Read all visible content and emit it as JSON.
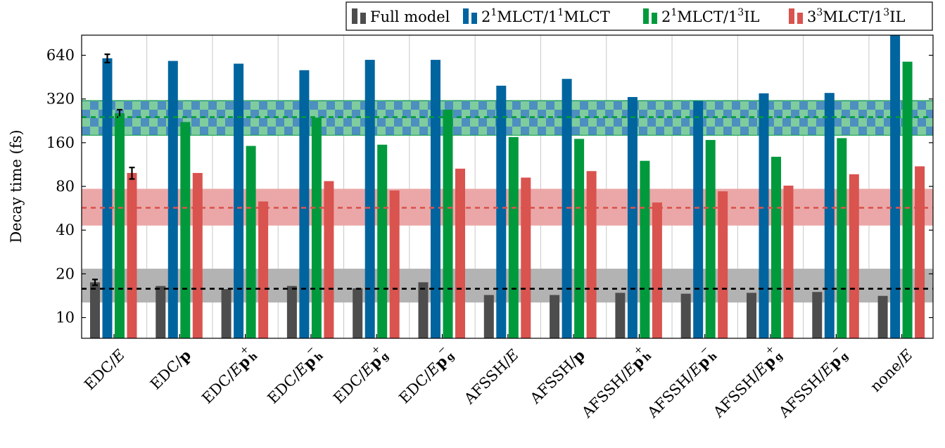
{
  "chart_data": {
    "type": "bar",
    "ylabel": "Decay time (fs)",
    "xlabel": "",
    "yscale": "log2",
    "ylim": [
      7.2,
      880
    ],
    "yticks": [
      10,
      20,
      40,
      80,
      160,
      320,
      640
    ],
    "ytick_labels": [
      "10",
      "20",
      "40",
      "80",
      "160",
      "320",
      "640"
    ],
    "grid": "vertical",
    "legend_position": "top-right",
    "categories": [
      {
        "pre": "EDC/",
        "italic": "E",
        "bold": "",
        "sup": "",
        "sub": ""
      },
      {
        "pre": "EDC/",
        "italic": "",
        "bold": "p",
        "sup": "",
        "sub": ""
      },
      {
        "pre": "EDC/",
        "italic": "E",
        "bold": "p",
        "sup": "+",
        "sub": "h"
      },
      {
        "pre": "EDC/",
        "italic": "E",
        "bold": "p",
        "sup": "−",
        "sub": "h"
      },
      {
        "pre": "EDC/",
        "italic": "E",
        "bold": "p",
        "sup": "+",
        "sub": "g"
      },
      {
        "pre": "EDC/",
        "italic": "E",
        "bold": "p",
        "sup": "−",
        "sub": "g"
      },
      {
        "pre": "AFSSH/",
        "italic": "E",
        "bold": "",
        "sup": "",
        "sub": ""
      },
      {
        "pre": "AFSSH/",
        "italic": "",
        "bold": "p",
        "sup": "",
        "sub": ""
      },
      {
        "pre": "AFSSH/",
        "italic": "E",
        "bold": "p",
        "sup": "+",
        "sub": "h"
      },
      {
        "pre": "AFSSH/",
        "italic": "E",
        "bold": "p",
        "sup": "−",
        "sub": "h"
      },
      {
        "pre": "AFSSH/",
        "italic": "E",
        "bold": "p",
        "sup": "+",
        "sub": "g"
      },
      {
        "pre": "AFSSH/",
        "italic": "E",
        "bold": "p",
        "sup": "−",
        "sub": "g"
      },
      {
        "pre": "none/",
        "italic": "E",
        "bold": "",
        "sup": "",
        "sub": ""
      }
    ],
    "series": [
      {
        "name": "Full model",
        "legend_parts": [
          "Full model"
        ],
        "color": "#4d4d4d",
        "values": [
          17.5,
          16.5,
          15.7,
          16.5,
          15.9,
          17.5,
          14.3,
          14.3,
          14.8,
          14.6,
          14.8,
          15.0,
          14.1
        ],
        "errors": [
          0.8,
          null,
          null,
          null,
          null,
          null,
          null,
          null,
          null,
          null,
          null,
          null,
          null
        ]
      },
      {
        "name": "2¹MLCT/1¹MLCT",
        "legend_parts": [
          "2",
          "1",
          "MLCT/1",
          "1",
          "MLCT"
        ],
        "color": "#00649f",
        "values": [
          610,
          585,
          560,
          505,
          595,
          595,
          395,
          440,
          330,
          310,
          350,
          352,
          880
        ],
        "errors": [
          40,
          null,
          null,
          null,
          null,
          null,
          null,
          null,
          null,
          null,
          null,
          null,
          null
        ]
      },
      {
        "name": "2¹MLCT/1³IL",
        "legend_parts": [
          "2",
          "1",
          "MLCT/1",
          "3",
          "IL"
        ],
        "color": "#009a3d",
        "values": [
          255,
          222,
          152,
          238,
          155,
          270,
          175,
          170,
          120,
          167,
          128,
          172,
          578
        ],
        "errors": [
          15,
          null,
          null,
          null,
          null,
          null,
          null,
          null,
          null,
          null,
          null,
          null,
          null
        ]
      },
      {
        "name": "3³MLCT/1³IL",
        "legend_parts": [
          "3",
          "3",
          "MLCT/1",
          "3",
          "IL"
        ],
        "color": "#d9534f",
        "values": [
          99,
          99,
          63,
          87,
          75,
          106,
          92,
          102,
          62,
          74,
          81,
          97,
          110
        ],
        "errors": [
          9,
          null,
          null,
          null,
          null,
          null,
          null,
          null,
          null,
          null,
          null,
          null,
          null
        ]
      }
    ],
    "reference_bands": [
      {
        "series": "Full model",
        "center": 15.8,
        "low": 12.7,
        "high": 21.7,
        "fill": "#b3b3b3",
        "line": "#000000"
      },
      {
        "series": "3³MLCT/1³IL",
        "center": 57,
        "low": 43,
        "high": 77,
        "fill": "#eba7a7",
        "line": "#d9534f"
      },
      {
        "series": "2¹MLCT/1³IL",
        "center": 240,
        "low": 180,
        "high": 312,
        "fill": "#7fcc9e",
        "line": "#009a3d",
        "pattern": "checker",
        "pattern_color": "#4d8fbf"
      }
    ]
  }
}
